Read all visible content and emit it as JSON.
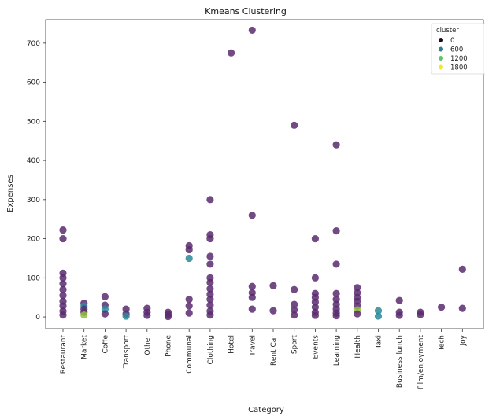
{
  "chart_data": {
    "type": "scatter",
    "title": "Kmeans Clustering",
    "xlabel": "Category",
    "ylabel": "Expenses",
    "ylim": [
      -30,
      760
    ],
    "yticks": [
      0,
      100,
      200,
      300,
      400,
      500,
      600,
      700
    ],
    "grid": false,
    "legend_placement": "top-right",
    "legend": {
      "title": "cluster",
      "entries": [
        {
          "label": "0",
          "color": "#1f0a1d"
        },
        {
          "label": "600",
          "color": "#2c7f8e"
        },
        {
          "label": "1200",
          "color": "#5dc863"
        },
        {
          "label": "1800",
          "color": "#f5e626"
        }
      ]
    },
    "categories": [
      "Restaurant",
      "Market",
      "Coffe",
      "Transport",
      "Other",
      "Phone",
      "Communal",
      "Clothing",
      "Hotel",
      "Travel",
      "Rent Car",
      "Sport",
      "Events",
      "Learning",
      "Health",
      "Taxi",
      "Business lunch",
      "Film/enjoyment",
      "Tech",
      "Joy"
    ],
    "colors": {
      "purple": "#5b2c6f",
      "teal": "#2a8a98",
      "green": "#8fbf3a"
    },
    "points": [
      {
        "category": "Restaurant",
        "y": 222,
        "color": "purple"
      },
      {
        "category": "Restaurant",
        "y": 200,
        "color": "purple"
      },
      {
        "category": "Restaurant",
        "y": 112,
        "color": "purple"
      },
      {
        "category": "Restaurant",
        "y": 100,
        "color": "purple"
      },
      {
        "category": "Restaurant",
        "y": 85,
        "color": "purple"
      },
      {
        "category": "Restaurant",
        "y": 70,
        "color": "purple"
      },
      {
        "category": "Restaurant",
        "y": 55,
        "color": "purple"
      },
      {
        "category": "Restaurant",
        "y": 40,
        "color": "purple"
      },
      {
        "category": "Restaurant",
        "y": 28,
        "color": "purple"
      },
      {
        "category": "Restaurant",
        "y": 15,
        "color": "purple"
      },
      {
        "category": "Restaurant",
        "y": 5,
        "color": "purple"
      },
      {
        "category": "Market",
        "y": 35,
        "color": "purple"
      },
      {
        "category": "Market",
        "y": 28,
        "color": "teal"
      },
      {
        "category": "Market",
        "y": 20,
        "color": "purple"
      },
      {
        "category": "Market",
        "y": 12,
        "color": "purple"
      },
      {
        "category": "Market",
        "y": 5,
        "color": "green"
      },
      {
        "category": "Coffe",
        "y": 52,
        "color": "purple"
      },
      {
        "category": "Coffe",
        "y": 30,
        "color": "purple"
      },
      {
        "category": "Coffe",
        "y": 20,
        "color": "teal"
      },
      {
        "category": "Coffe",
        "y": 8,
        "color": "purple"
      },
      {
        "category": "Transport",
        "y": 20,
        "color": "purple"
      },
      {
        "category": "Transport",
        "y": 8,
        "color": "purple"
      },
      {
        "category": "Transport",
        "y": 2,
        "color": "teal"
      },
      {
        "category": "Other",
        "y": 22,
        "color": "purple"
      },
      {
        "category": "Other",
        "y": 12,
        "color": "purple"
      },
      {
        "category": "Other",
        "y": 4,
        "color": "purple"
      },
      {
        "category": "Phone",
        "y": 12,
        "color": "purple"
      },
      {
        "category": "Phone",
        "y": 6,
        "color": "purple"
      },
      {
        "category": "Phone",
        "y": 1,
        "color": "purple"
      },
      {
        "category": "Communal",
        "y": 182,
        "color": "purple"
      },
      {
        "category": "Communal",
        "y": 172,
        "color": "purple"
      },
      {
        "category": "Communal",
        "y": 150,
        "color": "teal"
      },
      {
        "category": "Communal",
        "y": 45,
        "color": "purple"
      },
      {
        "category": "Communal",
        "y": 28,
        "color": "purple"
      },
      {
        "category": "Communal",
        "y": 10,
        "color": "purple"
      },
      {
        "category": "Clothing",
        "y": 300,
        "color": "purple"
      },
      {
        "category": "Clothing",
        "y": 210,
        "color": "purple"
      },
      {
        "category": "Clothing",
        "y": 200,
        "color": "purple"
      },
      {
        "category": "Clothing",
        "y": 155,
        "color": "purple"
      },
      {
        "category": "Clothing",
        "y": 135,
        "color": "purple"
      },
      {
        "category": "Clothing",
        "y": 100,
        "color": "purple"
      },
      {
        "category": "Clothing",
        "y": 88,
        "color": "purple"
      },
      {
        "category": "Clothing",
        "y": 72,
        "color": "purple"
      },
      {
        "category": "Clothing",
        "y": 58,
        "color": "purple"
      },
      {
        "category": "Clothing",
        "y": 45,
        "color": "purple"
      },
      {
        "category": "Clothing",
        "y": 30,
        "color": "purple"
      },
      {
        "category": "Clothing",
        "y": 15,
        "color": "purple"
      },
      {
        "category": "Clothing",
        "y": 5,
        "color": "purple"
      },
      {
        "category": "Hotel",
        "y": 675,
        "color": "purple"
      },
      {
        "category": "Travel",
        "y": 733,
        "color": "purple"
      },
      {
        "category": "Travel",
        "y": 260,
        "color": "purple"
      },
      {
        "category": "Travel",
        "y": 78,
        "color": "purple"
      },
      {
        "category": "Travel",
        "y": 62,
        "color": "purple"
      },
      {
        "category": "Travel",
        "y": 50,
        "color": "purple"
      },
      {
        "category": "Travel",
        "y": 20,
        "color": "purple"
      },
      {
        "category": "Rent Car",
        "y": 80,
        "color": "purple"
      },
      {
        "category": "Rent Car",
        "y": 16,
        "color": "purple"
      },
      {
        "category": "Sport",
        "y": 490,
        "color": "purple"
      },
      {
        "category": "Sport",
        "y": 70,
        "color": "purple"
      },
      {
        "category": "Sport",
        "y": 32,
        "color": "purple"
      },
      {
        "category": "Sport",
        "y": 18,
        "color": "purple"
      },
      {
        "category": "Sport",
        "y": 5,
        "color": "purple"
      },
      {
        "category": "Events",
        "y": 200,
        "color": "purple"
      },
      {
        "category": "Events",
        "y": 100,
        "color": "purple"
      },
      {
        "category": "Events",
        "y": 60,
        "color": "purple"
      },
      {
        "category": "Events",
        "y": 50,
        "color": "purple"
      },
      {
        "category": "Events",
        "y": 38,
        "color": "purple"
      },
      {
        "category": "Events",
        "y": 25,
        "color": "purple"
      },
      {
        "category": "Events",
        "y": 12,
        "color": "purple"
      },
      {
        "category": "Events",
        "y": 4,
        "color": "purple"
      },
      {
        "category": "Learning",
        "y": 440,
        "color": "purple"
      },
      {
        "category": "Learning",
        "y": 220,
        "color": "purple"
      },
      {
        "category": "Learning",
        "y": 135,
        "color": "purple"
      },
      {
        "category": "Learning",
        "y": 60,
        "color": "purple"
      },
      {
        "category": "Learning",
        "y": 45,
        "color": "purple"
      },
      {
        "category": "Learning",
        "y": 32,
        "color": "purple"
      },
      {
        "category": "Learning",
        "y": 20,
        "color": "purple"
      },
      {
        "category": "Learning",
        "y": 10,
        "color": "purple"
      },
      {
        "category": "Learning",
        "y": 3,
        "color": "purple"
      },
      {
        "category": "Health",
        "y": 75,
        "color": "purple"
      },
      {
        "category": "Health",
        "y": 62,
        "color": "purple"
      },
      {
        "category": "Health",
        "y": 50,
        "color": "purple"
      },
      {
        "category": "Health",
        "y": 40,
        "color": "purple"
      },
      {
        "category": "Health",
        "y": 28,
        "color": "purple"
      },
      {
        "category": "Health",
        "y": 18,
        "color": "green"
      },
      {
        "category": "Health",
        "y": 8,
        "color": "purple"
      },
      {
        "category": "Taxi",
        "y": 16,
        "color": "teal"
      },
      {
        "category": "Taxi",
        "y": 2,
        "color": "teal"
      },
      {
        "category": "Business lunch",
        "y": 42,
        "color": "purple"
      },
      {
        "category": "Business lunch",
        "y": 12,
        "color": "purple"
      },
      {
        "category": "Business lunch",
        "y": 4,
        "color": "purple"
      },
      {
        "category": "Film/enjoyment",
        "y": 12,
        "color": "purple"
      },
      {
        "category": "Film/enjoyment",
        "y": 6,
        "color": "purple"
      },
      {
        "category": "Tech",
        "y": 25,
        "color": "purple"
      },
      {
        "category": "Joy",
        "y": 122,
        "color": "purple"
      },
      {
        "category": "Joy",
        "y": 22,
        "color": "purple"
      }
    ]
  }
}
